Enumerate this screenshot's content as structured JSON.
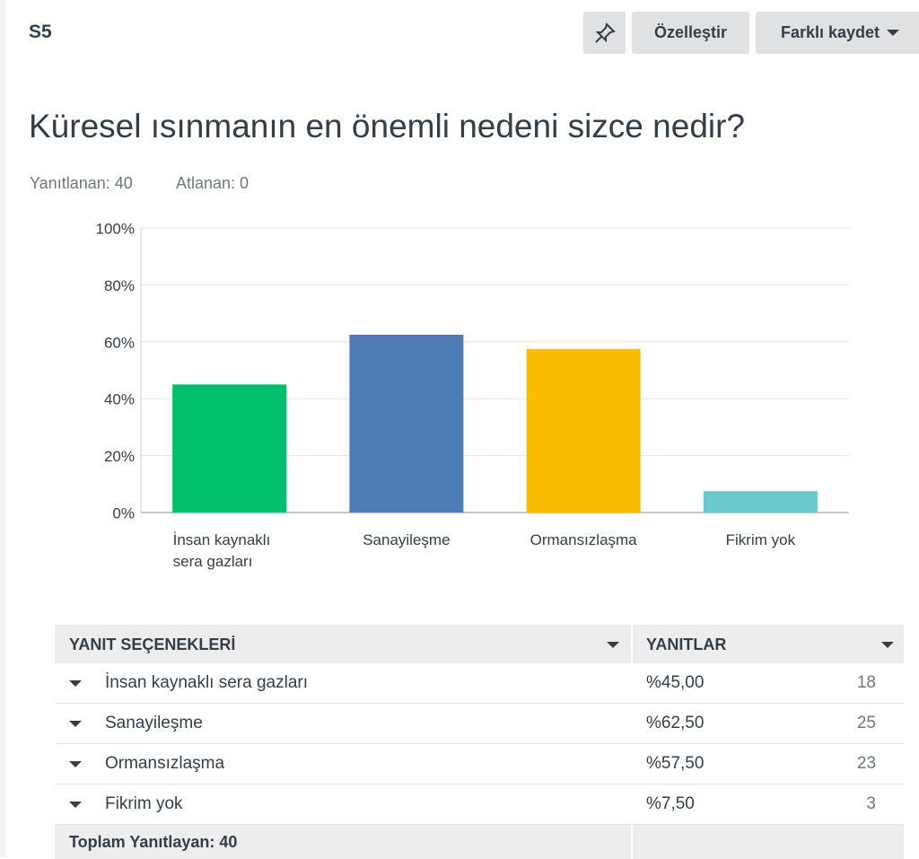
{
  "header": {
    "question_number": "S5",
    "buttons": [
      "Özelleştir",
      "Farklı kaydet"
    ]
  },
  "stats": {
    "answered": "Yanıtlanan: 40",
    "skipped": "Atlanan: 0"
  },
  "chart_data": {
    "type": "bar",
    "title": "Küresel ısınmanın en önemli nedeni sizce nedir?",
    "categories": [
      "İnsan kaynaklı sera gazları",
      "Sanayileşme",
      "Ormansızlaşma",
      "Fikrim yok"
    ],
    "values": [
      45,
      62.5,
      57.5,
      7.5
    ],
    "colors": [
      "#00bf6f",
      "#507cb6",
      "#f9be00",
      "#6bc8cd"
    ],
    "ylim": [
      0,
      100
    ],
    "yticks": [
      {
        "value": 0,
        "label": "0%"
      },
      {
        "value": 20,
        "label": "20%"
      },
      {
        "value": 40,
        "label": "40%"
      },
      {
        "value": 60,
        "label": "60%"
      },
      {
        "value": 80,
        "label": "80%"
      },
      {
        "value": 100,
        "label": "100%"
      }
    ],
    "grid": true
  },
  "table": {
    "header": [
      "YANIT SEÇENEKLERİ",
      "YANITLAR"
    ],
    "rows": [
      [
        "İnsan kaynaklı sera gazları",
        "%45,00",
        18
      ],
      [
        "Sanayileşme",
        "%62,50",
        25
      ],
      [
        "Ormansızlaşma",
        "%57,50",
        23
      ],
      [
        "Fikrim yok",
        "%7,50",
        3
      ]
    ],
    "footer": "Toplam Yanıtlayan: 40"
  }
}
